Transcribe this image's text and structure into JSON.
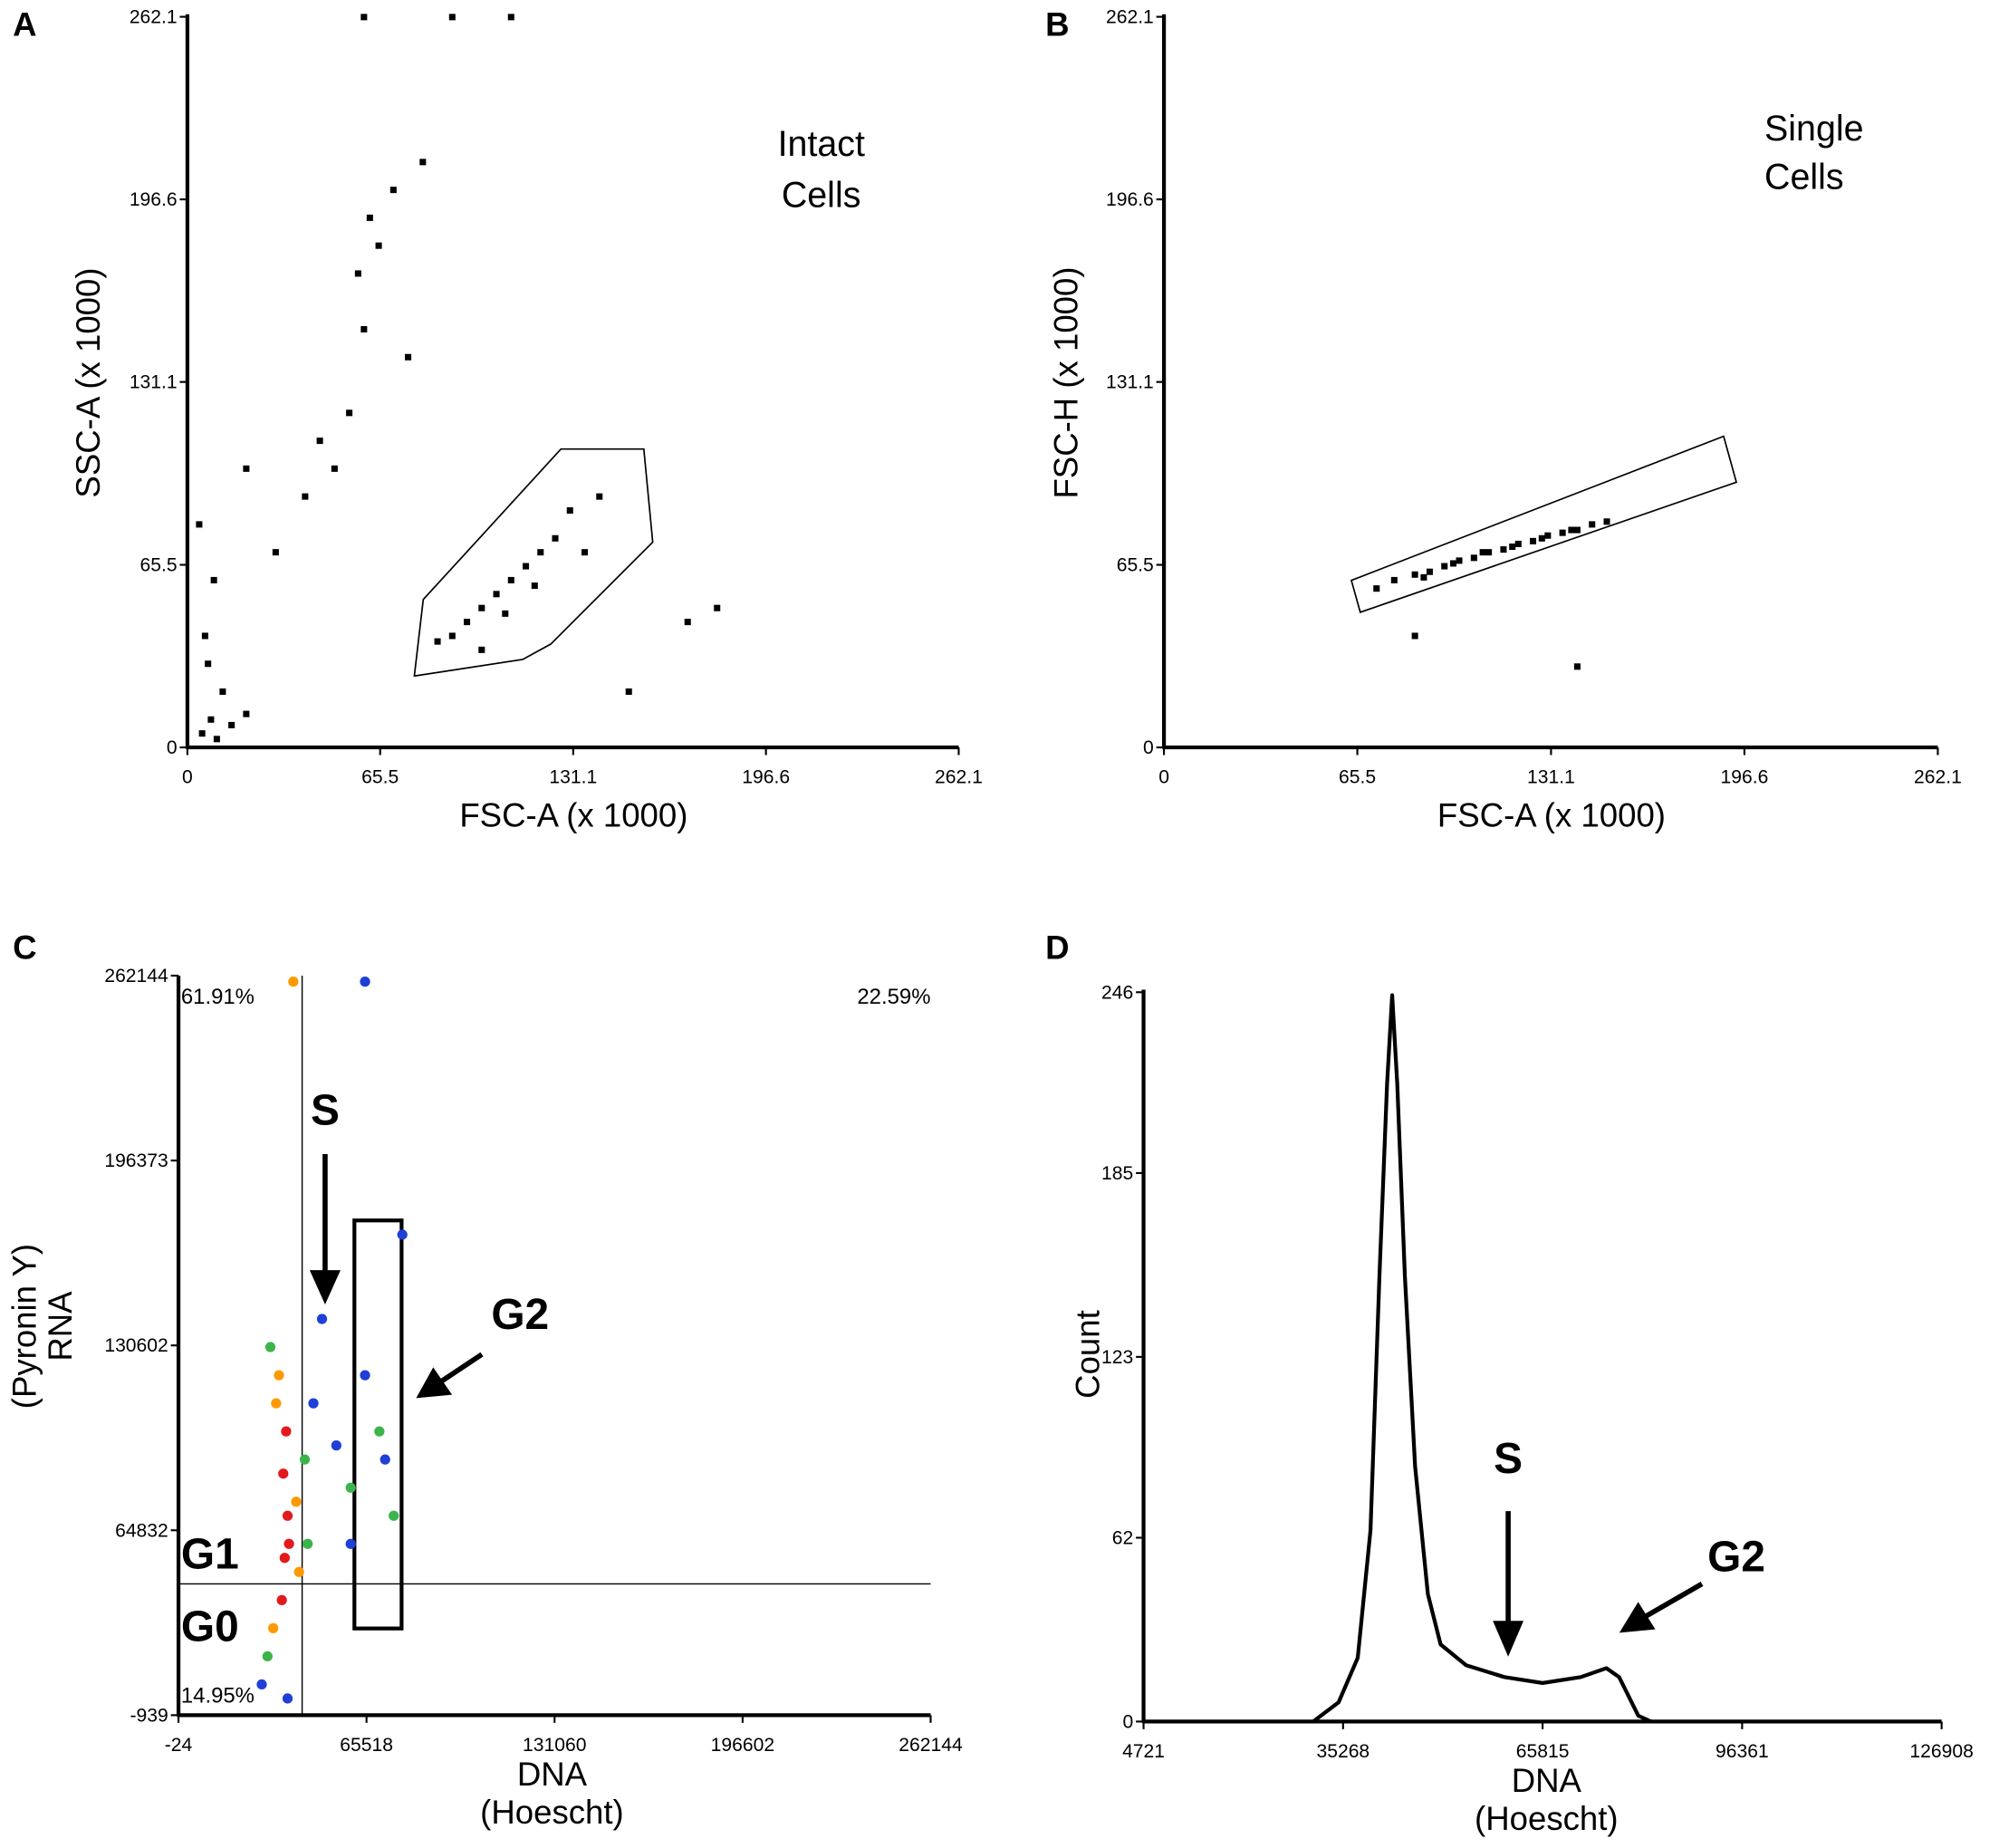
{
  "chart_data": [
    {
      "type": "scatter",
      "panel": "A",
      "xlabel": "FSC-A (x 1000)",
      "ylabel": "SSC-A (x 1000)",
      "annotation": [
        "Intact",
        "Cells"
      ],
      "xlim": [
        0,
        262.1
      ],
      "ylim": [
        0,
        262.1
      ],
      "xticks": [
        0,
        65.5,
        131.1,
        196.6,
        262.1
      ],
      "yticks": [
        0,
        65.5,
        131.1,
        196.6,
        262.1
      ],
      "series": [
        {
          "color": "#000000",
          "x": [
            5,
            8,
            10,
            12,
            6,
            15,
            20,
            9,
            4,
            7,
            90,
            95,
            100,
            105,
            110,
            115,
            120,
            100,
            108,
            125,
            130,
            85,
            140,
            135,
            118,
            60,
            65,
            70,
            55,
            58,
            62,
            75,
            50,
            45,
            80,
            30,
            40,
            150,
            170,
            180,
            20,
            110,
            60,
            90
          ],
          "values": [
            5,
            10,
            3,
            20,
            40,
            8,
            12,
            60,
            80,
            30,
            40,
            45,
            50,
            55,
            60,
            65,
            70,
            35,
            48,
            75,
            85,
            38,
            90,
            70,
            58,
            150,
            180,
            200,
            120,
            170,
            190,
            140,
            100,
            110,
            210,
            70,
            90,
            20,
            45,
            50,
            100,
            262,
            262,
            262
          ]
        }
      ]
    },
    {
      "type": "scatter",
      "panel": "B",
      "xlabel": "FSC-A (x 1000)",
      "ylabel": "FSC-H (x 1000)",
      "annotation": [
        "Single",
        "Cells"
      ],
      "xlim": [
        0,
        262.1
      ],
      "ylim": [
        0,
        262.1
      ],
      "xticks": [
        0,
        65.5,
        131.1,
        196.6,
        262.1
      ],
      "yticks": [
        0,
        65.5,
        131.1,
        196.6,
        262.1
      ],
      "series": [
        {
          "color": "#000000",
          "x": [
            72,
            78,
            85,
            90,
            95,
            100,
            105,
            110,
            115,
            120,
            125,
            130,
            135,
            140,
            145,
            150,
            88,
            98,
            108,
            118,
            128,
            138,
            85,
            140
          ],
          "values": [
            57,
            60,
            62,
            63,
            65,
            67,
            68,
            70,
            71,
            73,
            74,
            76,
            77,
            78,
            80,
            81,
            61,
            66,
            70,
            72,
            75,
            78,
            40,
            29
          ]
        }
      ]
    },
    {
      "type": "scatter",
      "panel": "C",
      "xlabel": [
        "DNA",
        "(Hoescht)"
      ],
      "ylabel": [
        "RNA",
        "(Pyronin Y)"
      ],
      "quadrant_labels": [
        "61.91%",
        "22.59%",
        "14.95%"
      ],
      "phase_labels": [
        "S",
        "G1",
        "G0",
        "G2"
      ],
      "xlim": [
        -24,
        262144
      ],
      "ylim": [
        -939,
        262144
      ],
      "xticks": [
        -24,
        65518,
        131060,
        196602,
        262144
      ],
      "yticks": [
        -939,
        64832,
        130602,
        196373,
        262144
      ],
      "series": [
        {
          "color": "#1f3fd6",
          "x": [
            29000,
            47000,
            55000,
            65000,
            72000,
            50000,
            38000,
            60000,
            78000,
            65000
          ],
          "values": [
            10000,
            110000,
            95000,
            120000,
            90000,
            140000,
            5000,
            60000,
            170000,
            260000
          ]
        },
        {
          "color": "#3cb44b",
          "x": [
            31000,
            44000,
            32000,
            45000,
            60000,
            70000,
            75000
          ],
          "values": [
            20000,
            90000,
            130000,
            60000,
            80000,
            100000,
            70000
          ]
        },
        {
          "color": "#ff9900",
          "x": [
            33000,
            41000,
            34000,
            42000,
            35000,
            40000
          ],
          "values": [
            30000,
            75000,
            110000,
            50000,
            120000,
            260000
          ]
        },
        {
          "color": "#e31a1c",
          "x": [
            36000,
            37000,
            38000,
            36500,
            37500,
            38500
          ],
          "values": [
            40000,
            55000,
            70000,
            85000,
            100000,
            60000
          ]
        }
      ]
    },
    {
      "type": "line",
      "panel": "D",
      "xlabel": [
        "DNA",
        "(Hoescht)"
      ],
      "ylabel": "Count",
      "phase_labels": [
        "S",
        "G2"
      ],
      "xlim": [
        4721,
        126908
      ],
      "ylim": [
        0,
        246
      ],
      "xticks": [
        4721,
        35268,
        65815,
        96361,
        126908
      ],
      "yticks": [
        0,
        62,
        123,
        185,
        246
      ],
      "series": [
        {
          "color": "#000000",
          "x": [
            30683,
            34585,
            37513,
            39465,
            40831,
            42002,
            42783,
            43564,
            44735,
            46297,
            48249,
            50201,
            54105,
            59961,
            65817,
            71673,
            75577,
            77529,
            80457,
            82409
          ],
          "values": [
            0,
            6.5,
            21.5,
            64.5,
            150,
            215,
            245,
            215,
            150,
            86,
            43,
            26,
            19,
            15,
            13,
            15,
            18,
            15,
            2,
            0
          ]
        }
      ]
    }
  ]
}
